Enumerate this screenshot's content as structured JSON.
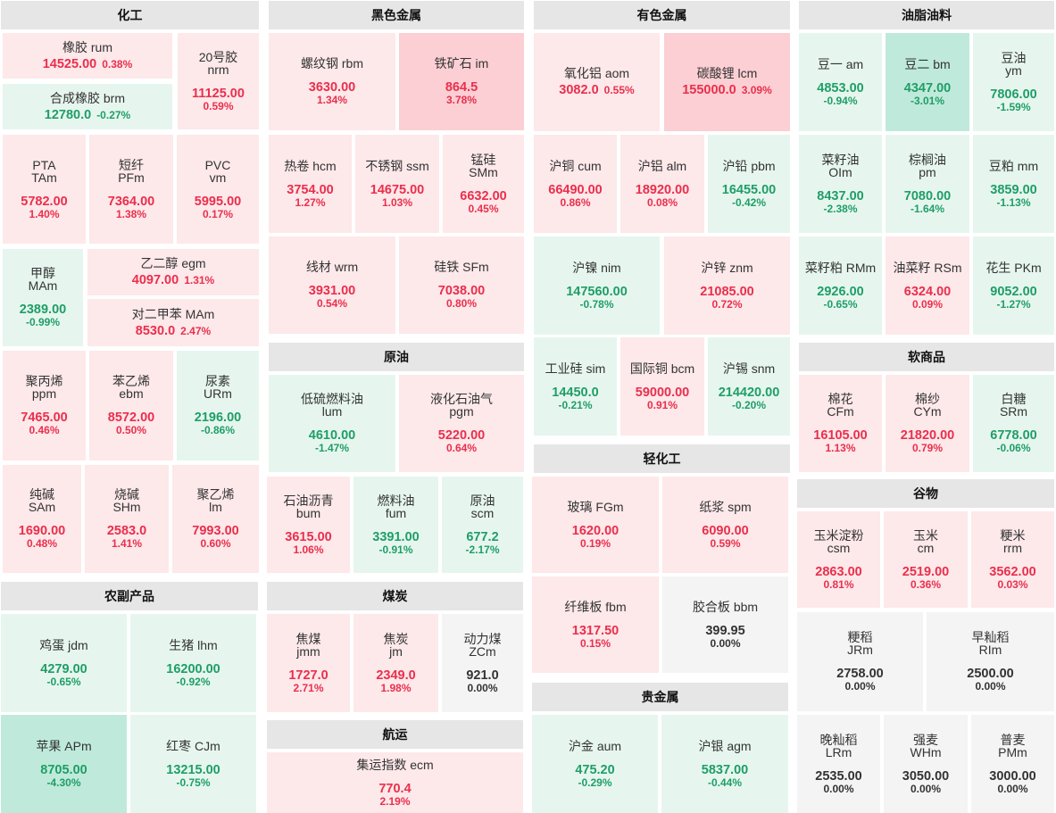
{
  "colors": {
    "up": "#ea2f4c",
    "down": "#1f9e66",
    "flat": "#333333"
  },
  "sections": {
    "chem": "化工",
    "ferrous": "黑色金属",
    "nonferrous": "有色金属",
    "oils": "油脂油料",
    "crude": "原油",
    "light": "轻化工",
    "soft": "软商品",
    "ag": "农副产品",
    "coal": "煤炭",
    "grain": "谷物",
    "precious": "贵金属",
    "shipping": "航运"
  },
  "tiles": {
    "rum": {
      "name": "橡胶 rum",
      "price": "14525.00",
      "change": "0.38%",
      "dir": "up"
    },
    "brm": {
      "name": "合成橡胶 brm",
      "price": "12780.0",
      "change": "-0.27%",
      "dir": "down"
    },
    "nrm": {
      "name": "20号胶",
      "code": "nrm",
      "price": "11125.00",
      "change": "0.59%",
      "dir": "up"
    },
    "tam": {
      "name": "PTA",
      "code": "TAm",
      "price": "5782.00",
      "change": "1.40%",
      "dir": "up"
    },
    "pfm": {
      "name": "短纤",
      "code": "PFm",
      "price": "7364.00",
      "change": "1.38%",
      "dir": "up"
    },
    "vm": {
      "name": "PVC",
      "code": "vm",
      "price": "5995.00",
      "change": "0.17%",
      "dir": "up"
    },
    "mam_meth": {
      "name": "甲醇",
      "code": "MAm",
      "price": "2389.00",
      "change": "-0.99%",
      "dir": "down"
    },
    "egm": {
      "name": "乙二醇 egm",
      "price": "4097.00",
      "change": "1.31%",
      "dir": "up"
    },
    "px": {
      "name": "对二甲苯 MAm",
      "price": "8530.0",
      "change": "2.47%",
      "dir": "up"
    },
    "ppm": {
      "name": "聚丙烯",
      "code": "ppm",
      "price": "7465.00",
      "change": "0.46%",
      "dir": "up"
    },
    "ebm": {
      "name": "苯乙烯",
      "code": "ebm",
      "price": "8572.00",
      "change": "0.50%",
      "dir": "up"
    },
    "urm": {
      "name": "尿素",
      "code": "URm",
      "price": "2196.00",
      "change": "-0.86%",
      "dir": "down"
    },
    "sam": {
      "name": "纯碱",
      "code": "SAm",
      "price": "1690.00",
      "change": "0.48%",
      "dir": "up"
    },
    "shm": {
      "name": "烧碱",
      "code": "SHm",
      "price": "2583.0",
      "change": "1.41%",
      "dir": "up"
    },
    "lm": {
      "name": "聚乙烯",
      "code": "lm",
      "price": "7993.00",
      "change": "0.60%",
      "dir": "up"
    },
    "rbm": {
      "name": "螺纹钢 rbm",
      "price": "3630.00",
      "change": "1.34%",
      "dir": "up"
    },
    "im": {
      "name": "铁矿石 im",
      "price": "864.5",
      "change": "3.78%",
      "dir": "up"
    },
    "hcm": {
      "name": "热卷 hcm",
      "price": "3754.00",
      "change": "1.27%",
      "dir": "up"
    },
    "ssm": {
      "name": "不锈钢 ssm",
      "price": "14675.00",
      "change": "1.03%",
      "dir": "up"
    },
    "smm": {
      "name": "锰硅",
      "code": "SMm",
      "price": "6632.00",
      "change": "0.45%",
      "dir": "up"
    },
    "wrm": {
      "name": "线材 wrm",
      "price": "3931.00",
      "change": "0.54%",
      "dir": "up"
    },
    "sfm": {
      "name": "硅铁 SFm",
      "price": "7038.00",
      "change": "0.80%",
      "dir": "up"
    },
    "aom": {
      "name": "氧化铝 aom",
      "price": "3082.0",
      "change": "0.55%",
      "dir": "up"
    },
    "lcm": {
      "name": "碳酸锂 lcm",
      "price": "155000.0",
      "change": "3.09%",
      "dir": "up"
    },
    "cum": {
      "name": "沪铜 cum",
      "price": "66490.00",
      "change": "0.86%",
      "dir": "up"
    },
    "alm": {
      "name": "沪铝 alm",
      "price": "18920.00",
      "change": "0.08%",
      "dir": "up"
    },
    "pbm": {
      "name": "沪铅 pbm",
      "price": "16455.00",
      "change": "-0.42%",
      "dir": "down"
    },
    "nim": {
      "name": "沪镍 nim",
      "price": "147560.00",
      "change": "-0.78%",
      "dir": "down"
    },
    "znm": {
      "name": "沪锌 znm",
      "price": "21085.00",
      "change": "0.72%",
      "dir": "up"
    },
    "sim": {
      "name": "工业硅 sim",
      "price": "14450.0",
      "change": "-0.21%",
      "dir": "down"
    },
    "bcm": {
      "name": "国际铜 bcm",
      "price": "59000.00",
      "change": "0.91%",
      "dir": "up"
    },
    "snm": {
      "name": "沪锡 snm",
      "price": "214420.00",
      "change": "-0.20%",
      "dir": "down"
    },
    "am": {
      "name": "豆一 am",
      "price": "4853.00",
      "change": "-0.94%",
      "dir": "down"
    },
    "bm": {
      "name": "豆二 bm",
      "price": "4347.00",
      "change": "-3.01%",
      "dir": "down"
    },
    "ym": {
      "name": "豆油",
      "code": "ym",
      "price": "7806.00",
      "change": "-1.59%",
      "dir": "down"
    },
    "oim": {
      "name": "菜籽油",
      "code": "OIm",
      "price": "8437.00",
      "change": "-2.38%",
      "dir": "down"
    },
    "pm": {
      "name": "棕榈油",
      "code": "pm",
      "price": "7080.00",
      "change": "-1.64%",
      "dir": "down"
    },
    "mm": {
      "name": "豆粕 mm",
      "price": "3859.00",
      "change": "-1.13%",
      "dir": "down"
    },
    "rmm": {
      "name": "菜籽粕 RMm",
      "price": "2926.00",
      "change": "-0.65%",
      "dir": "down"
    },
    "rsm": {
      "name": "油菜籽 RSm",
      "price": "6324.00",
      "change": "0.09%",
      "dir": "up"
    },
    "pkm": {
      "name": "花生 PKm",
      "price": "9052.00",
      "change": "-1.27%",
      "dir": "down"
    },
    "lum": {
      "name": "低硫燃料油",
      "code": "lum",
      "price": "4610.00",
      "change": "-1.47%",
      "dir": "down"
    },
    "pgm": {
      "name": "液化石油气",
      "code": "pgm",
      "price": "5220.00",
      "change": "0.64%",
      "dir": "up"
    },
    "bum": {
      "name": "石油沥青",
      "code": "bum",
      "price": "3615.00",
      "change": "1.06%",
      "dir": "up"
    },
    "fum": {
      "name": "燃料油",
      "code": "fum",
      "price": "3391.00",
      "change": "-0.91%",
      "dir": "down"
    },
    "scm": {
      "name": "原油",
      "code": "scm",
      "price": "677.2",
      "change": "-2.17%",
      "dir": "down"
    },
    "fgm": {
      "name": "玻璃 FGm",
      "price": "1620.00",
      "change": "0.19%",
      "dir": "up"
    },
    "spm": {
      "name": "纸浆 spm",
      "price": "6090.00",
      "change": "0.59%",
      "dir": "up"
    },
    "fbm": {
      "name": "纤维板 fbm",
      "price": "1317.50",
      "change": "0.15%",
      "dir": "up"
    },
    "bbm": {
      "name": "胶合板 bbm",
      "price": "399.95",
      "change": "0.00%",
      "dir": "flat"
    },
    "cfm": {
      "name": "棉花",
      "code": "CFm",
      "price": "16105.00",
      "change": "1.13%",
      "dir": "up"
    },
    "cym": {
      "name": "棉纱",
      "code": "CYm",
      "price": "21820.00",
      "change": "0.79%",
      "dir": "up"
    },
    "srm": {
      "name": "白糖",
      "code": "SRm",
      "price": "6778.00",
      "change": "-0.06%",
      "dir": "down"
    },
    "jdm": {
      "name": "鸡蛋 jdm",
      "price": "4279.00",
      "change": "-0.65%",
      "dir": "down"
    },
    "lhm": {
      "name": "生猪 lhm",
      "price": "16200.00",
      "change": "-0.92%",
      "dir": "down"
    },
    "apm": {
      "name": "苹果 APm",
      "price": "8705.00",
      "change": "-4.30%",
      "dir": "down"
    },
    "cjm": {
      "name": "红枣 CJm",
      "price": "13215.00",
      "change": "-0.75%",
      "dir": "down"
    },
    "jmm": {
      "name": "焦煤",
      "code": "jmm",
      "price": "1727.0",
      "change": "2.71%",
      "dir": "up"
    },
    "jm": {
      "name": "焦炭",
      "code": "jm",
      "price": "2349.0",
      "change": "1.98%",
      "dir": "up"
    },
    "zcm": {
      "name": "动力煤",
      "code": "ZCm",
      "price": "921.0",
      "change": "0.00%",
      "dir": "flat"
    },
    "csm": {
      "name": "玉米淀粉",
      "code": "csm",
      "price": "2863.00",
      "change": "0.81%",
      "dir": "up"
    },
    "cm": {
      "name": "玉米",
      "code": "cm",
      "price": "2519.00",
      "change": "0.36%",
      "dir": "up"
    },
    "rrm": {
      "name": "粳米",
      "code": "rrm",
      "price": "3562.00",
      "change": "0.03%",
      "dir": "up"
    },
    "jrm": {
      "name": "粳稻",
      "code": "JRm",
      "price": "2758.00",
      "change": "0.00%",
      "dir": "flat"
    },
    "rim": {
      "name": "早籼稻",
      "code": "RIm",
      "price": "2500.00",
      "change": "0.00%",
      "dir": "flat"
    },
    "lrm": {
      "name": "晚籼稻",
      "code": "LRm",
      "price": "2535.00",
      "change": "0.00%",
      "dir": "flat"
    },
    "whm": {
      "name": "强麦",
      "code": "WHm",
      "price": "3050.00",
      "change": "0.00%",
      "dir": "flat"
    },
    "pmm": {
      "name": "普麦",
      "code": "PMm",
      "price": "3000.00",
      "change": "0.00%",
      "dir": "flat"
    },
    "aum": {
      "name": "沪金 aum",
      "price": "475.20",
      "change": "-0.29%",
      "dir": "down"
    },
    "agm": {
      "name": "沪银 agm",
      "price": "5837.00",
      "change": "-0.44%",
      "dir": "down"
    },
    "ecm": {
      "name": "集运指数 ecm",
      "price": "770.4",
      "change": "2.19%",
      "dir": "up"
    }
  }
}
